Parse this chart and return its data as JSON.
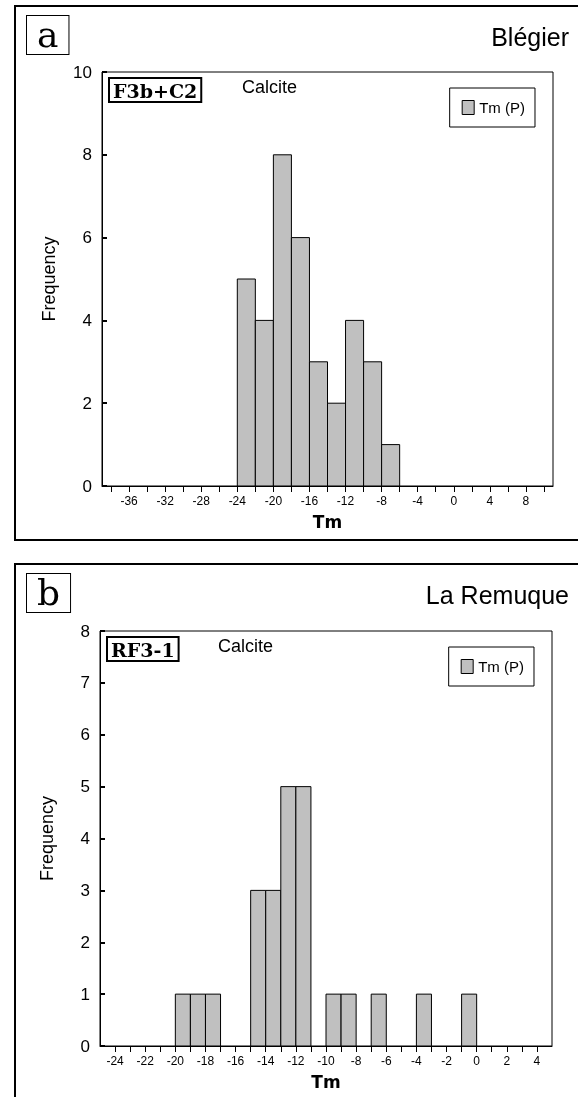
{
  "chart_data": [
    {
      "type": "histogram",
      "title": "Blégier",
      "xlabel": "Tm",
      "ylabel": "Frequency",
      "annotations": [
        "a",
        "F3b+C2",
        "Calcite"
      ],
      "bins": [
        -24,
        -22,
        -20,
        -18,
        -16,
        -14,
        -12,
        -10,
        -8,
        -6
      ],
      "series": [
        {
          "name": "Tm (P)",
          "color": "#c0c0c0",
          "values": [
            5,
            4,
            8,
            6,
            3,
            2,
            4,
            3,
            1
          ]
        }
      ],
      "xlim": [
        -39,
        11
      ],
      "xticks": [
        {
          "value": -38,
          "label": null
        },
        -36,
        {
          "value": -34,
          "label": null
        },
        -32,
        {
          "value": -30,
          "label": null
        },
        -28,
        {
          "value": -26,
          "label": null
        },
        -24,
        {
          "value": -22,
          "label": null
        },
        -20,
        {
          "value": -18,
          "label": null
        },
        -16,
        {
          "value": -14,
          "label": null
        },
        -12,
        {
          "value": -10,
          "label": null
        },
        -8,
        {
          "value": -6,
          "label": null
        },
        -4,
        {
          "value": -2,
          "label": null
        },
        0,
        {
          "value": 2,
          "label": null
        },
        4,
        {
          "value": 6,
          "label": null
        },
        8,
        {
          "value": 10,
          "label": null
        }
      ],
      "ylim": [
        0,
        10
      ],
      "yticks": [
        0,
        2,
        4,
        6,
        8,
        10
      ],
      "grid": false,
      "legend": "top right"
    },
    {
      "type": "histogram",
      "title": "La Remuque",
      "xlabel": "Tm",
      "ylabel": "Frequency",
      "annotations": [
        "b",
        "RF3-1",
        "Calcite"
      ],
      "bins": [
        -20,
        -19,
        -18,
        -17,
        -16,
        -15,
        -14,
        -13,
        -12,
        -11,
        -10,
        -9,
        -8,
        -7,
        -6,
        -5,
        -4,
        -3,
        -2,
        -1,
        0
      ],
      "series": [
        {
          "name": "Tm (P)",
          "color": "#c0c0c0",
          "values": [
            1,
            1,
            1,
            0,
            0,
            3,
            3,
            5,
            5,
            0,
            1,
            1,
            0,
            1,
            0,
            0,
            1,
            0,
            0,
            1
          ]
        }
      ],
      "xlim": [
        -25,
        5
      ],
      "xticks": [
        -24,
        {
          "value": -23,
          "label": null
        },
        -22,
        {
          "value": -21,
          "label": null
        },
        -20,
        {
          "value": -19,
          "label": null
        },
        -18,
        {
          "value": -17,
          "label": null
        },
        -16,
        {
          "value": -15,
          "label": null
        },
        -14,
        {
          "value": -13,
          "label": null
        },
        -12,
        {
          "value": -11,
          "label": null
        },
        -10,
        {
          "value": -9,
          "label": null
        },
        -8,
        {
          "value": -7,
          "label": null
        },
        -6,
        {
          "value": -5,
          "label": null
        },
        -4,
        {
          "value": -3,
          "label": null
        },
        -2,
        {
          "value": -1,
          "label": null
        },
        0,
        {
          "value": 1,
          "label": null
        },
        2,
        {
          "value": 3,
          "label": null
        },
        4
      ],
      "ylim": [
        0,
        8
      ],
      "yticks": [
        0,
        1,
        2,
        3,
        4,
        5,
        6,
        7,
        8
      ],
      "grid": false,
      "legend": "top right"
    }
  ]
}
